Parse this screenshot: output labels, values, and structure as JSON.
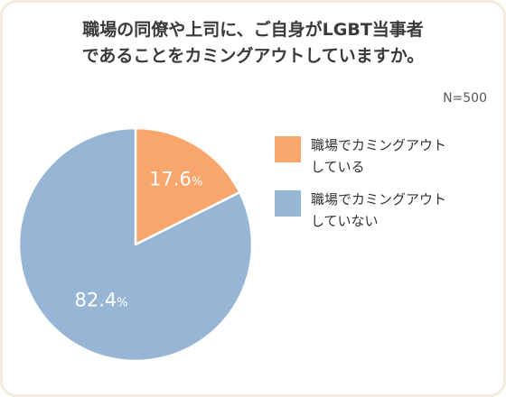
{
  "title_lines": [
    "職場の同僚や上司に、ご自身がLGBT当事者",
    "であることをカミングアウトしていますか。"
  ],
  "sample_size": "N=500",
  "colors": {
    "series_1": "#f9a66d",
    "series_2": "#97b5d4",
    "card_border": "#f3ebdd"
  },
  "legend": [
    {
      "lines": [
        "職場でカミングアウト",
        "している"
      ]
    },
    {
      "lines": [
        "職場でカミングアウト",
        "していない"
      ]
    }
  ],
  "chart_data": {
    "type": "pie",
    "title": "職場の同僚や上司に、ご自身がLGBT当事者であることをカミングアウトしていますか。",
    "slices": [
      {
        "label": "職場でカミングアウトしている",
        "value": 17.6,
        "display": "17.6%",
        "color": "#f9a66d"
      },
      {
        "label": "職場でカミングアウトしていない",
        "value": 82.4,
        "display": "82.4%",
        "color": "#97b5d4"
      }
    ],
    "unit": "%",
    "legend_position": "right"
  }
}
